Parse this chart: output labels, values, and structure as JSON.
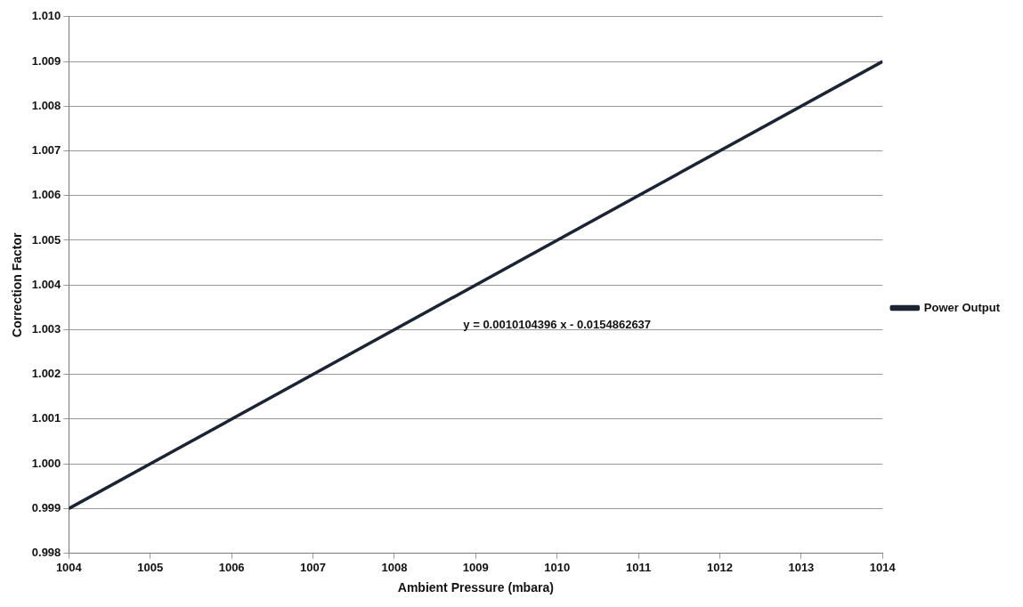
{
  "chart_data": {
    "type": "line",
    "xlabel": "Ambient Pressure (mbara)",
    "ylabel": "Correction Factor",
    "x": [
      1004,
      1014
    ],
    "series": [
      {
        "name": "Power Output",
        "color": "#1c2433",
        "values": [
          0.999,
          1.009
        ]
      }
    ],
    "xlim": [
      1004,
      1014
    ],
    "xticks": [
      1004,
      1005,
      1006,
      1007,
      1008,
      1009,
      1010,
      1011,
      1012,
      1013,
      1014
    ],
    "ylim": [
      0.998,
      1.01
    ],
    "yticks": [
      {
        "value": 0.998,
        "label": "0.998"
      },
      {
        "value": 0.999,
        "label": "0.999"
      },
      {
        "value": 1,
        "label": "1.000"
      },
      {
        "value": 1.001,
        "label": "1.001"
      },
      {
        "value": 1.002,
        "label": "1.002"
      },
      {
        "value": 1.003,
        "label": "1.003"
      },
      {
        "value": 1.004,
        "label": "1.004"
      },
      {
        "value": 1.005,
        "label": "1.005"
      },
      {
        "value": 1.006,
        "label": "1.006"
      },
      {
        "value": 1.007,
        "label": "1.007"
      },
      {
        "value": 1.008,
        "label": "1.008"
      },
      {
        "value": 1.009,
        "label": "1.009"
      },
      {
        "value": 1.01,
        "label": "1.010"
      }
    ],
    "annotations": [
      "y = 0.0010104396 x - 0.0154862637"
    ],
    "grid": "y",
    "legend": "right",
    "marker": "none",
    "line_style": "solid"
  }
}
